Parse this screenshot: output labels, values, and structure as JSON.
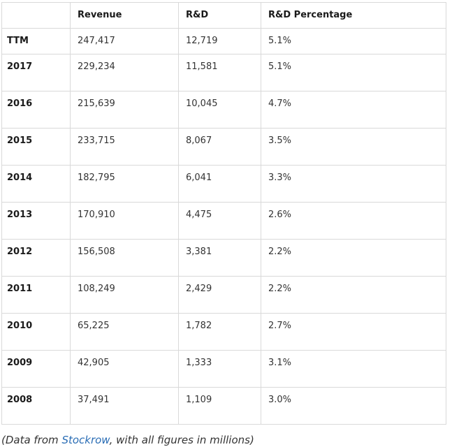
{
  "table": {
    "columns": [
      "",
      "Revenue",
      "R&D",
      "R&D Percentage"
    ],
    "rows": [
      {
        "label": "TTM",
        "revenue": "247,417",
        "rd": "12,719",
        "rd_pct": "5.1%"
      },
      {
        "label": "2017",
        "revenue": "229,234",
        "rd": "11,581",
        "rd_pct": "5.1%"
      },
      {
        "label": "2016",
        "revenue": "215,639",
        "rd": "10,045",
        "rd_pct": "4.7%"
      },
      {
        "label": "2015",
        "revenue": "233,715",
        "rd": "8,067",
        "rd_pct": "3.5%"
      },
      {
        "label": "2014",
        "revenue": "182,795",
        "rd": "6,041",
        "rd_pct": "3.3%"
      },
      {
        "label": "2013",
        "revenue": "170,910",
        "rd": "4,475",
        "rd_pct": "2.6%"
      },
      {
        "label": "2012",
        "revenue": "156,508",
        "rd": "3,381",
        "rd_pct": "2.2%"
      },
      {
        "label": "2011",
        "revenue": "108,249",
        "rd": "2,429",
        "rd_pct": "2.2%"
      },
      {
        "label": "2010",
        "revenue": "65,225",
        "rd": "1,782",
        "rd_pct": "2.7%"
      },
      {
        "label": "2009",
        "revenue": "42,905",
        "rd": "1,333",
        "rd_pct": "3.1%"
      },
      {
        "label": "2008",
        "revenue": "37,491",
        "rd": "1,109",
        "rd_pct": "3.0%"
      }
    ]
  },
  "caption": {
    "prefix": "(Data from ",
    "link_text": "Stockrow",
    "suffix": ", with all figures in millions)"
  },
  "colors": {
    "border": "#d9d9d9",
    "text": "#333333",
    "bold_text": "#1a1a1a",
    "link": "#2a6db5",
    "background": "#ffffff"
  }
}
